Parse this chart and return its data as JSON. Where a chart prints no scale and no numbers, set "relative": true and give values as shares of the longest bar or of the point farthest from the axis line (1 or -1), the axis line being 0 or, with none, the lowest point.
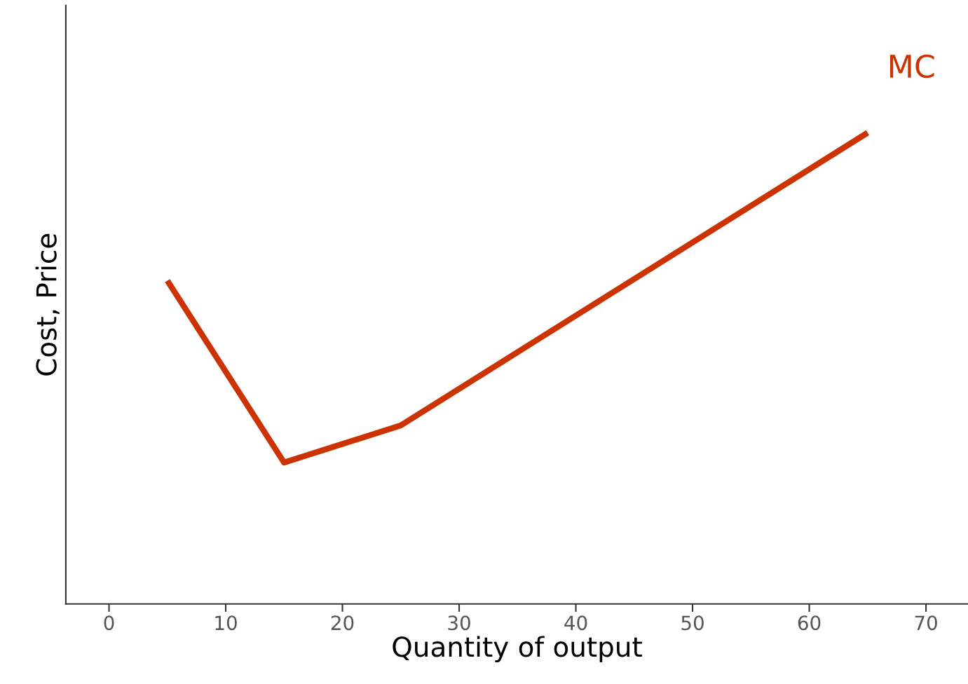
{
  "chart_data": {
    "type": "line",
    "xlabel": "Quantity of output",
    "ylabel": "Cost, Price",
    "relative": true,
    "x": [
      5,
      15,
      25,
      65
    ],
    "series": [
      {
        "name": "MC",
        "color": "#cc3300",
        "values": [
          0.686,
          0.3,
          0.379,
          1.0
        ]
      }
    ],
    "xlim": [
      -3.7,
      73.6
    ],
    "xticks": [
      0,
      10,
      20,
      30,
      40,
      50,
      60,
      70
    ],
    "grid": false
  }
}
